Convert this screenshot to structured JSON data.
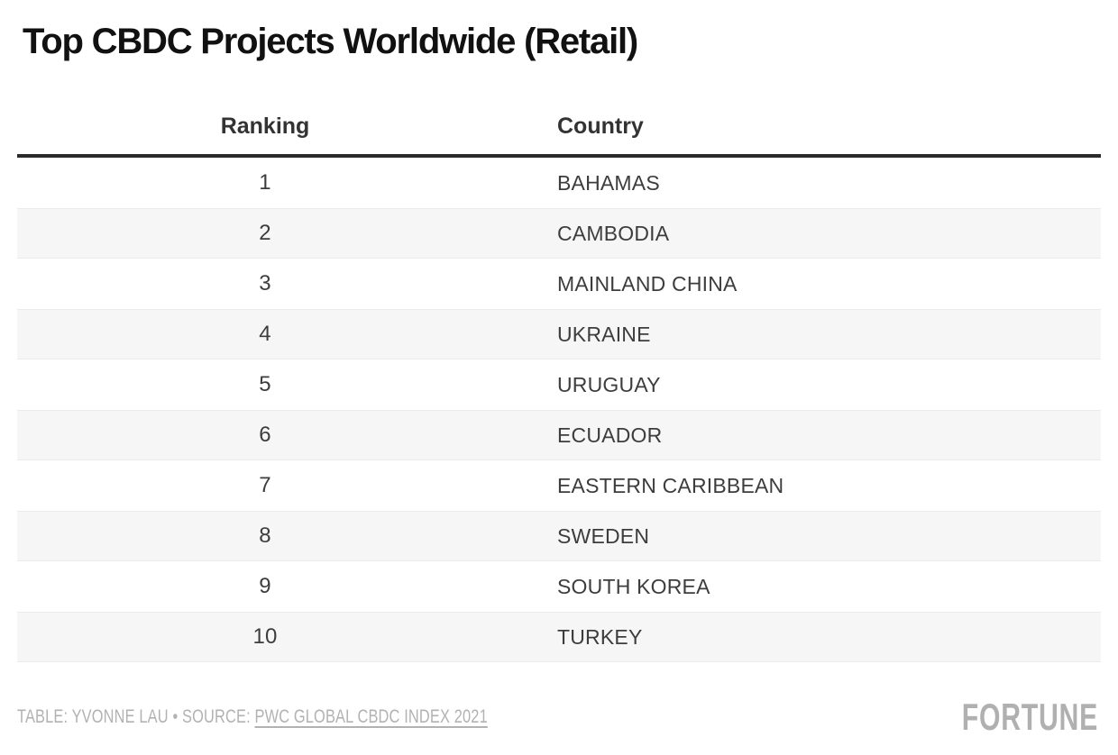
{
  "title": "Top CBDC Projects Worldwide (Retail)",
  "table": {
    "columns": [
      {
        "label": "Ranking"
      },
      {
        "label": "Country"
      }
    ],
    "rows": [
      {
        "ranking": "1",
        "country": "BAHAMAS"
      },
      {
        "ranking": "2",
        "country": "CAMBODIA"
      },
      {
        "ranking": "3",
        "country": "MAINLAND CHINA"
      },
      {
        "ranking": "4",
        "country": "UKRAINE"
      },
      {
        "ranking": "5",
        "country": "URUGUAY"
      },
      {
        "ranking": "6",
        "country": "ECUADOR"
      },
      {
        "ranking": "7",
        "country": "EASTERN CARIBBEAN"
      },
      {
        "ranking": "8",
        "country": "SWEDEN"
      },
      {
        "ranking": "9",
        "country": "SOUTH KOREA"
      },
      {
        "ranking": "10",
        "country": "TURKEY"
      }
    ]
  },
  "footer": {
    "credit": "TABLE: YVONNE LAU",
    "separator": "•",
    "source_label": "SOURCE:",
    "source_link": "PWC GLOBAL CBDC INDEX 2021",
    "brand": "FORTUNE"
  },
  "colors": {
    "title_text": "#111111",
    "header_text": "#333333",
    "header_rule": "#2b2b2b",
    "row_text": "#3d3d3d",
    "stripe_bg": "#f6f6f6",
    "stripe_border": "#ebebeb",
    "footer_text": "#b2b2b2",
    "brand_gray": "#b0b0b0"
  },
  "chart_data": {
    "type": "table",
    "title": "Top CBDC Projects Worldwide (Retail)",
    "columns": [
      "Ranking",
      "Country"
    ],
    "rows": [
      [
        1,
        "BAHAMAS"
      ],
      [
        2,
        "CAMBODIA"
      ],
      [
        3,
        "MAINLAND CHINA"
      ],
      [
        4,
        "UKRAINE"
      ],
      [
        5,
        "URUGUAY"
      ],
      [
        6,
        "ECUADOR"
      ],
      [
        7,
        "EASTERN CARIBBEAN"
      ],
      [
        8,
        "SWEDEN"
      ],
      [
        9,
        "SOUTH KOREA"
      ],
      [
        10,
        "TURKEY"
      ]
    ],
    "credit": "TABLE: YVONNE LAU",
    "source": "PWC GLOBAL CBDC INDEX 2021",
    "layout_hints": {
      "zebra_striping": true,
      "striped_rows": "even",
      "ranking_align": "center",
      "country_align": "left"
    }
  }
}
